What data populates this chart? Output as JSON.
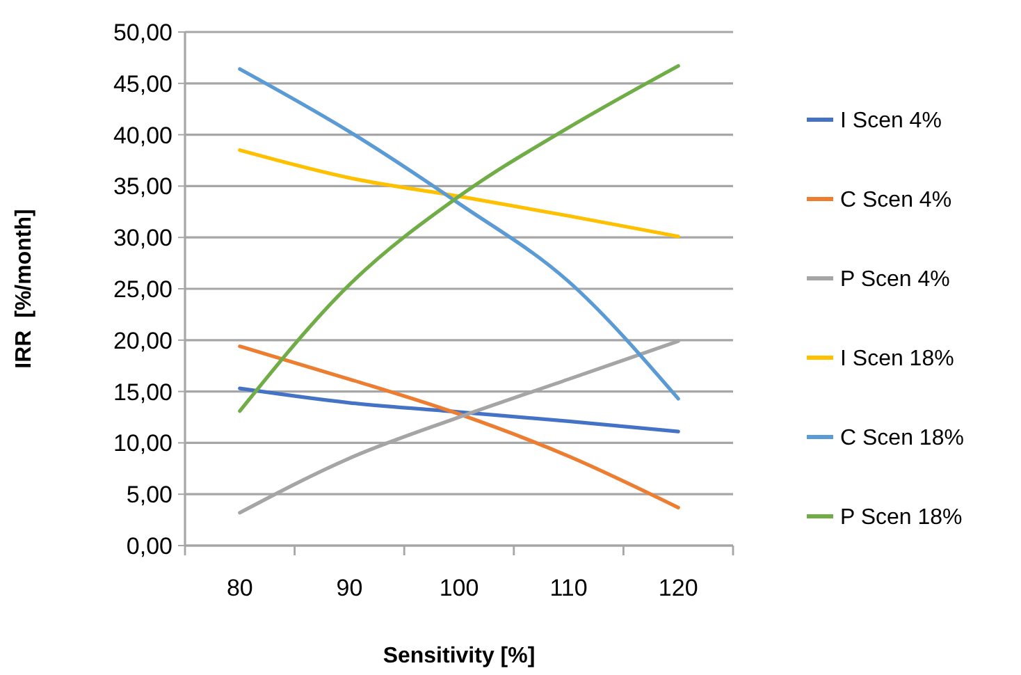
{
  "chart_data": {
    "type": "line",
    "xlabel": "Sensitivity [%]",
    "ylabel": "IRR  [%/month]",
    "categories": [
      "80",
      "90",
      "100",
      "110",
      "120"
    ],
    "series": [
      {
        "name": "I Scen 4%",
        "color": "#4472c4",
        "values": [
          15.3,
          13.9,
          13.0,
          12.1,
          11.1
        ]
      },
      {
        "name": "C Scen 4%",
        "color": "#ed7d31",
        "values": [
          19.4,
          16.2,
          12.8,
          8.7,
          3.7
        ]
      },
      {
        "name": "P Scen 4%",
        "color": "#a5a5a5",
        "values": [
          3.2,
          8.5,
          12.5,
          16.2,
          19.9
        ]
      },
      {
        "name": "I Scen 18%",
        "color": "#ffc000",
        "values": [
          38.5,
          35.8,
          34.0,
          32.1,
          30.1
        ]
      },
      {
        "name": "C Scen 18%",
        "color": "#5b9bd5",
        "values": [
          46.4,
          40.3,
          33.3,
          25.7,
          14.3
        ]
      },
      {
        "name": "P Scen 18%",
        "color": "#70ad47",
        "values": [
          13.1,
          25.4,
          34.0,
          40.7,
          46.7
        ]
      }
    ],
    "ylim": [
      0,
      50
    ],
    "yticks": [
      {
        "value": 0,
        "label": "0,00"
      },
      {
        "value": 5,
        "label": "5,00"
      },
      {
        "value": 10,
        "label": "10,00"
      },
      {
        "value": 15,
        "label": "15,00"
      },
      {
        "value": 20,
        "label": "20,00"
      },
      {
        "value": 25,
        "label": "25,00"
      },
      {
        "value": 30,
        "label": "30,00"
      },
      {
        "value": 35,
        "label": "35,00"
      },
      {
        "value": 40,
        "label": "40,00"
      },
      {
        "value": 45,
        "label": "45,00"
      },
      {
        "value": 50,
        "label": "50,00"
      }
    ],
    "grid": "y",
    "legend": "right",
    "marker": "none",
    "line_style": "solid"
  }
}
